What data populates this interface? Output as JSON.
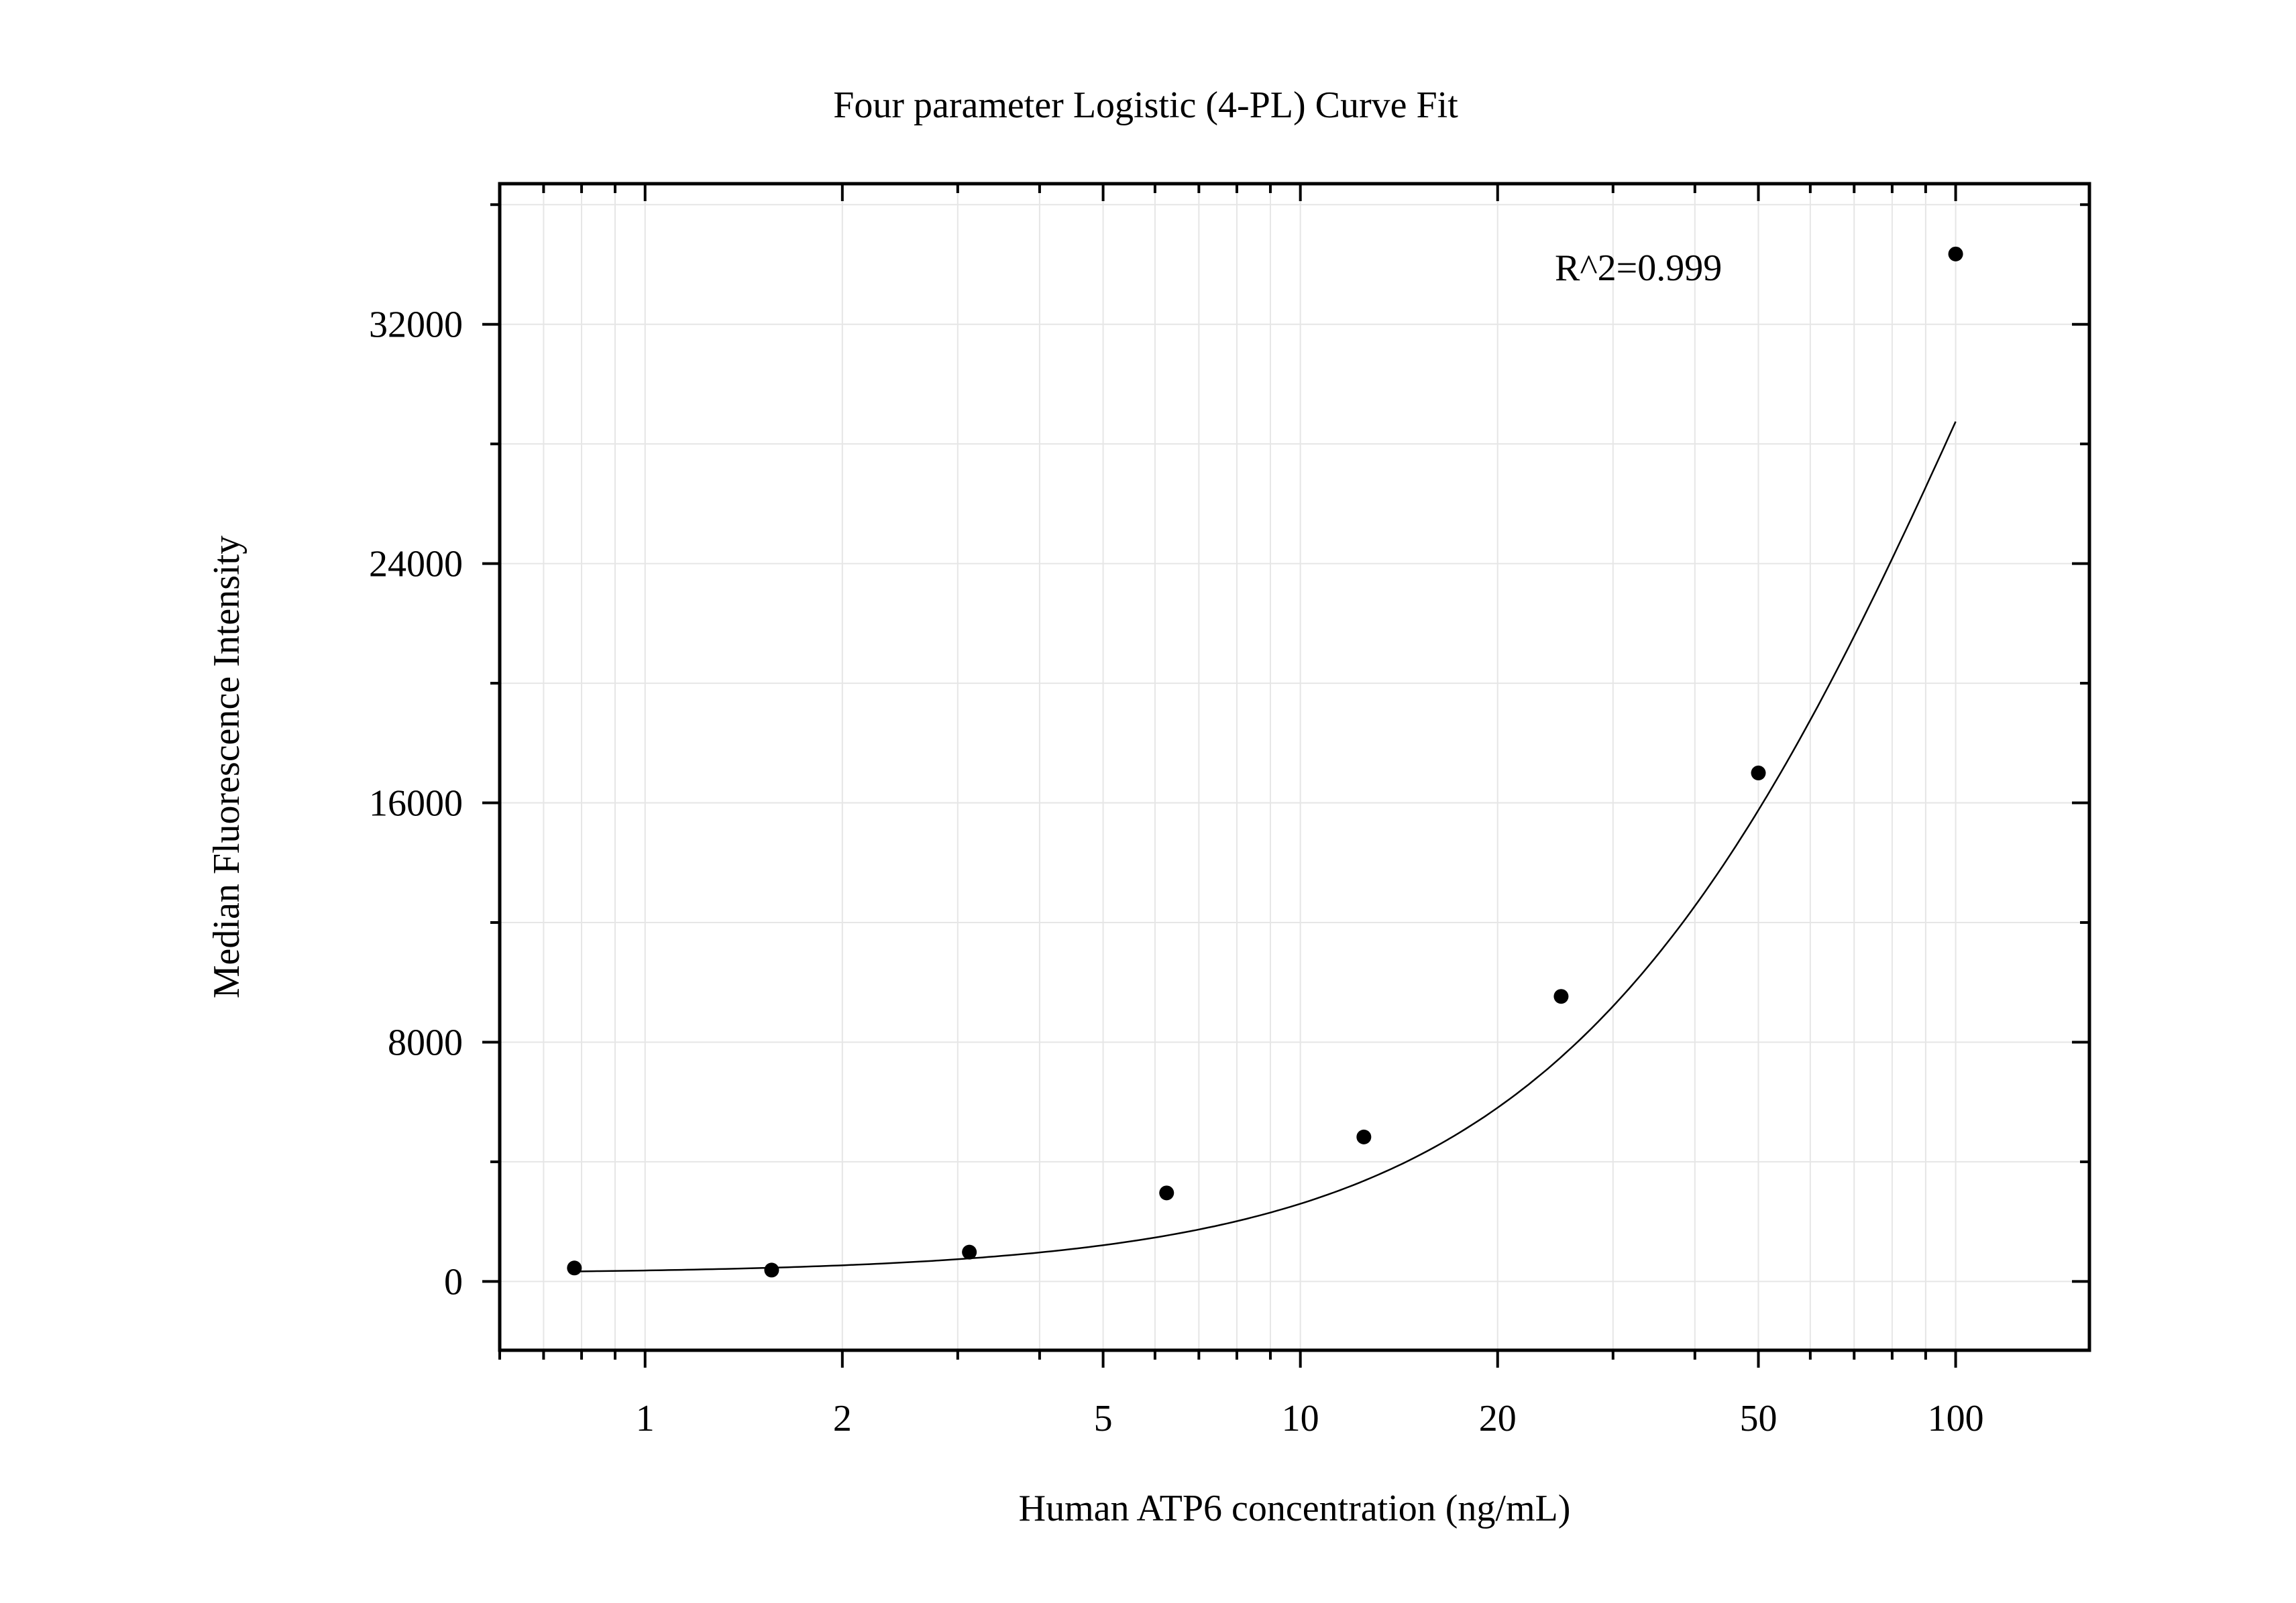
{
  "chart_data": {
    "type": "scatter",
    "title": "Four parameter Logistic (4-PL) Curve Fit",
    "xlabel": "Human ATP6 concentration (ng/mL)",
    "ylabel": "Median Fluorescence Intensity",
    "x_scale": "log",
    "xlim": [
      0.6,
      160
    ],
    "ylim": [
      -2300,
      36700
    ],
    "x_ticks": [
      1,
      2,
      5,
      10,
      20,
      50,
      100
    ],
    "x_tick_labels": [
      "1",
      "2",
      "5",
      "10",
      "20",
      "50",
      "100"
    ],
    "y_ticks": [
      0,
      8000,
      16000,
      24000,
      32000
    ],
    "y_tick_labels": [
      "0",
      "8000",
      "16000",
      "24000",
      "32000"
    ],
    "grid": true,
    "annotation": "R^2=0.999",
    "series": [
      {
        "type": "scatter",
        "x": [
          0.78,
          1.56,
          3.125,
          6.25,
          12.5,
          25,
          50,
          100
        ],
        "y": [
          450,
          380,
          980,
          2960,
          4830,
          9530,
          17000,
          34350
        ]
      }
    ],
    "fit_curve": {
      "model": "4-PL",
      "A": 250,
      "B": 1.32,
      "C": 120,
      "D": 65000
    }
  },
  "colors": {
    "points": "#000000",
    "curve": "#000000",
    "grid": "#e6e6e6",
    "axes": "#000000"
  }
}
